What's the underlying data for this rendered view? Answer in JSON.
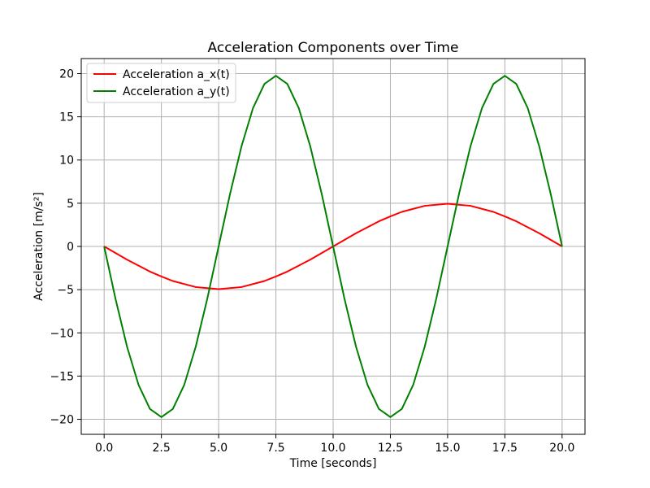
{
  "chart_data": {
    "type": "line",
    "title": "Acceleration Components over Time",
    "xlabel": "Time [seconds]",
    "ylabel": "Acceleration [m/s²]",
    "xlim": [
      -1.0,
      21.0
    ],
    "ylim": [
      -21.74,
      21.74
    ],
    "xticks": [
      0.0,
      2.5,
      5.0,
      7.5,
      10.0,
      12.5,
      15.0,
      17.5,
      20.0
    ],
    "xtick_labels": [
      "0.0",
      "2.5",
      "5.0",
      "7.5",
      "10.0",
      "12.5",
      "15.0",
      "17.5",
      "20.0"
    ],
    "yticks": [
      -20,
      -15,
      -10,
      -5,
      0,
      5,
      10,
      15,
      20
    ],
    "ytick_labels": [
      "−20",
      "−15",
      "−10",
      "−5",
      "0",
      "5",
      "10",
      "15",
      "20"
    ],
    "grid": true,
    "legend": "top-left",
    "series": [
      {
        "name": "Acceleration a_x(t)",
        "color": "#ff0000",
        "x": [
          0.0,
          1.0,
          2.0,
          2.5,
          3.0,
          4.0,
          5.0,
          6.0,
          7.0,
          7.5,
          8.0,
          9.0,
          10.0,
          11.0,
          12.0,
          12.5,
          13.0,
          14.0,
          15.0,
          16.0,
          17.0,
          17.5,
          18.0,
          19.0,
          20.0
        ],
        "values": [
          0.0,
          -1.53,
          -2.91,
          -3.48,
          -4.0,
          -4.7,
          -4.94,
          -4.7,
          -4.0,
          -3.48,
          -2.91,
          -1.53,
          0.0,
          1.53,
          2.91,
          3.48,
          4.0,
          4.7,
          4.94,
          4.7,
          4.0,
          3.48,
          2.91,
          1.53,
          0.0
        ]
      },
      {
        "name": "Acceleration a_y(t)",
        "color": "#008000",
        "x": [
          0.0,
          0.5,
          1.0,
          1.5,
          2.0,
          2.5,
          3.0,
          3.5,
          4.0,
          4.5,
          5.0,
          5.5,
          6.0,
          6.5,
          7.0,
          7.5,
          8.0,
          8.5,
          9.0,
          9.5,
          10.0,
          10.5,
          11.0,
          11.5,
          12.0,
          12.5,
          13.0,
          13.5,
          14.0,
          14.5,
          15.0,
          15.5,
          16.0,
          16.5,
          17.0,
          17.5,
          18.0,
          18.5,
          19.0,
          19.5,
          20.0
        ],
        "values": [
          0.0,
          -6.1,
          -11.6,
          -16.0,
          -18.8,
          -19.75,
          -18.8,
          -16.0,
          -11.6,
          -6.1,
          0.0,
          6.1,
          11.6,
          16.0,
          18.8,
          19.75,
          18.8,
          16.0,
          11.6,
          6.1,
          0.0,
          -6.1,
          -11.6,
          -16.0,
          -18.8,
          -19.75,
          -18.8,
          -16.0,
          -11.6,
          -6.1,
          0.0,
          6.1,
          11.6,
          16.0,
          18.8,
          19.75,
          18.8,
          16.0,
          11.6,
          6.1,
          0.0
        ]
      }
    ]
  }
}
